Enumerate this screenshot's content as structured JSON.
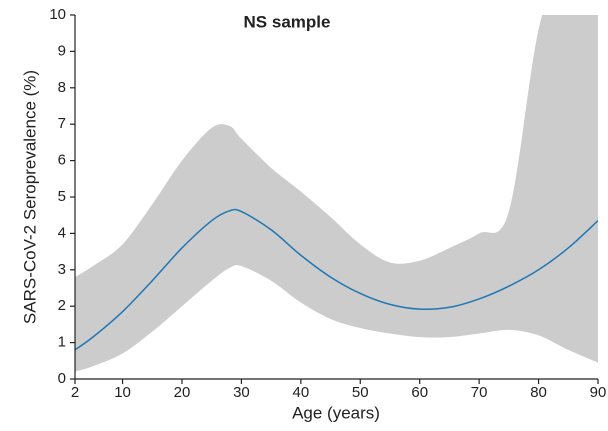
{
  "chart_data": {
    "type": "line",
    "title": "NS sample",
    "xlabel": "Age (years)",
    "ylabel": "SARS-CoV-2 Seroprevalence (%)",
    "x": [
      2,
      5,
      10,
      15,
      20,
      25,
      28,
      30,
      35,
      40,
      45,
      50,
      55,
      60,
      65,
      70,
      75,
      80,
      85,
      90
    ],
    "series": [
      {
        "color": "#1f77b4",
        "values": [
          0.8,
          1.15,
          1.85,
          2.7,
          3.6,
          4.35,
          4.62,
          4.6,
          4.1,
          3.4,
          2.8,
          2.35,
          2.05,
          1.92,
          1.97,
          2.2,
          2.55,
          3.0,
          3.6,
          4.35
        ]
      }
    ],
    "band": {
      "color": "#cccccc",
      "upper": [
        2.8,
        3.1,
        3.7,
        4.8,
        6.0,
        6.9,
        6.95,
        6.6,
        5.8,
        5.15,
        4.45,
        3.7,
        3.2,
        3.25,
        3.6,
        4.0,
        4.6,
        9.6,
        12,
        14
      ],
      "lower": [
        0.2,
        0.35,
        0.7,
        1.3,
        2.0,
        2.7,
        3.05,
        3.1,
        2.7,
        2.1,
        1.65,
        1.4,
        1.25,
        1.15,
        1.15,
        1.25,
        1.35,
        1.2,
        0.8,
        0.45
      ]
    },
    "xlim": [
      2,
      90
    ],
    "xticks": [
      2,
      10,
      20,
      30,
      40,
      50,
      60,
      70,
      80,
      90
    ],
    "ylim": [
      0,
      10
    ],
    "yticks": [
      0,
      1,
      2,
      3,
      4,
      5,
      6,
      7,
      8,
      9,
      10
    ]
  }
}
